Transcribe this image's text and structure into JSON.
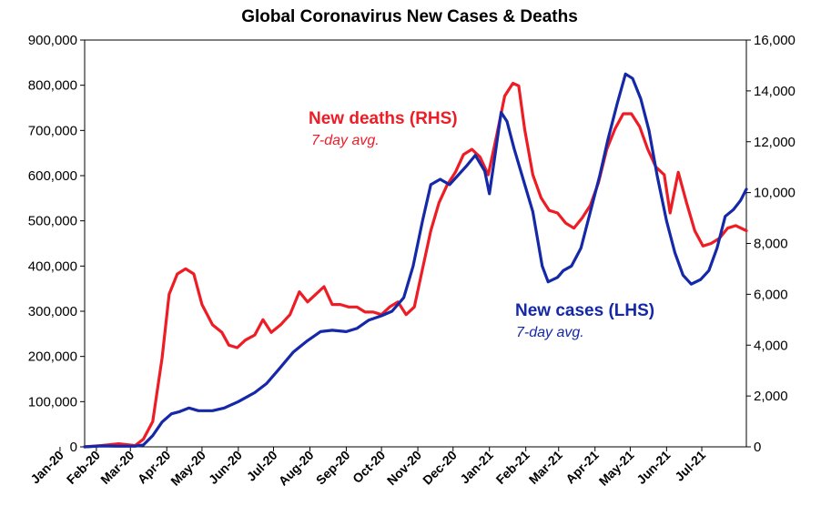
{
  "chart_data": {
    "type": "line",
    "title": "Global Coronavirus New Cases & Deaths",
    "x_start": "2020-01-22",
    "x_end": "2021-08-08",
    "xticks": [
      "Jan-20",
      "Feb-20",
      "Mar-20",
      "Apr-20",
      "May-20",
      "Jun-20",
      "Jul-20",
      "Aug-20",
      "Sep-20",
      "Oct-20",
      "Nov-20",
      "Dec-20",
      "Jan-21",
      "Feb-21",
      "Mar-21",
      "Apr-21",
      "May-21",
      "Jun-21",
      "Jul-21"
    ],
    "y_left": {
      "range": [
        0,
        900000
      ],
      "ticks": [
        "0",
        "100,000",
        "200,000",
        "300,000",
        "400,000",
        "500,000",
        "600,000",
        "700,000",
        "800,000",
        "900,000"
      ]
    },
    "y_right": {
      "range": [
        0,
        16000
      ],
      "ticks": [
        "0",
        "2,000",
        "4,000",
        "6,000",
        "8,000",
        "10,000",
        "12,000",
        "14,000",
        "16,000"
      ]
    },
    "series": [
      {
        "name": "New cases (LHS)",
        "subtitle": "7-day avg.",
        "axis": "left",
        "color": "#1428a8",
        "points": [
          [
            "2020-01-22",
            0
          ],
          [
            "2020-02-05",
            2000
          ],
          [
            "2020-02-20",
            1500
          ],
          [
            "2020-03-05",
            1500
          ],
          [
            "2020-03-12",
            4000
          ],
          [
            "2020-03-20",
            25000
          ],
          [
            "2020-03-28",
            55000
          ],
          [
            "2020-04-05",
            73000
          ],
          [
            "2020-04-12",
            78000
          ],
          [
            "2020-04-20",
            86000
          ],
          [
            "2020-04-28",
            80000
          ],
          [
            "2020-05-10",
            80000
          ],
          [
            "2020-05-20",
            86000
          ],
          [
            "2020-06-01",
            100000
          ],
          [
            "2020-06-15",
            120000
          ],
          [
            "2020-06-25",
            140000
          ],
          [
            "2020-07-05",
            170000
          ],
          [
            "2020-07-18",
            210000
          ],
          [
            "2020-07-30",
            235000
          ],
          [
            "2020-08-10",
            255000
          ],
          [
            "2020-08-20",
            258000
          ],
          [
            "2020-09-01",
            255000
          ],
          [
            "2020-09-10",
            262000
          ],
          [
            "2020-09-20",
            280000
          ],
          [
            "2020-10-01",
            290000
          ],
          [
            "2020-10-10",
            300000
          ],
          [
            "2020-10-20",
            330000
          ],
          [
            "2020-10-28",
            400000
          ],
          [
            "2020-11-05",
            500000
          ],
          [
            "2020-11-12",
            580000
          ],
          [
            "2020-11-20",
            592000
          ],
          [
            "2020-11-28",
            580000
          ],
          [
            "2020-12-05",
            600000
          ],
          [
            "2020-12-12",
            620000
          ],
          [
            "2020-12-20",
            645000
          ],
          [
            "2020-12-28",
            610000
          ],
          [
            "2021-01-01",
            560000
          ],
          [
            "2021-01-06",
            650000
          ],
          [
            "2021-01-11",
            740000
          ],
          [
            "2021-01-16",
            720000
          ],
          [
            "2021-01-22",
            660000
          ],
          [
            "2021-01-30",
            590000
          ],
          [
            "2021-02-07",
            520000
          ],
          [
            "2021-02-15",
            400000
          ],
          [
            "2021-02-20",
            365000
          ],
          [
            "2021-02-28",
            375000
          ],
          [
            "2021-03-05",
            390000
          ],
          [
            "2021-03-12",
            400000
          ],
          [
            "2021-03-20",
            440000
          ],
          [
            "2021-03-28",
            520000
          ],
          [
            "2021-04-05",
            600000
          ],
          [
            "2021-04-12",
            680000
          ],
          [
            "2021-04-20",
            760000
          ],
          [
            "2021-04-27",
            825000
          ],
          [
            "2021-05-03",
            815000
          ],
          [
            "2021-05-10",
            770000
          ],
          [
            "2021-05-17",
            700000
          ],
          [
            "2021-05-24",
            600000
          ],
          [
            "2021-06-01",
            500000
          ],
          [
            "2021-06-08",
            430000
          ],
          [
            "2021-06-15",
            380000
          ],
          [
            "2021-06-22",
            360000
          ],
          [
            "2021-06-30",
            370000
          ],
          [
            "2021-07-07",
            390000
          ],
          [
            "2021-07-14",
            440000
          ],
          [
            "2021-07-21",
            510000
          ],
          [
            "2021-07-28",
            525000
          ],
          [
            "2021-08-03",
            545000
          ],
          [
            "2021-08-08",
            570000
          ]
        ]
      },
      {
        "name": "New deaths (RHS)",
        "subtitle": "7-day avg.",
        "axis": "right",
        "color": "#ee1c25",
        "points": [
          [
            "2020-01-22",
            0
          ],
          [
            "2020-02-05",
            50
          ],
          [
            "2020-02-20",
            120
          ],
          [
            "2020-03-05",
            50
          ],
          [
            "2020-03-12",
            300
          ],
          [
            "2020-03-20",
            1000
          ],
          [
            "2020-03-28",
            3500
          ],
          [
            "2020-04-03",
            6000
          ],
          [
            "2020-04-10",
            6800
          ],
          [
            "2020-04-17",
            7000
          ],
          [
            "2020-04-24",
            6800
          ],
          [
            "2020-05-01",
            5600
          ],
          [
            "2020-05-10",
            4800
          ],
          [
            "2020-05-18",
            4500
          ],
          [
            "2020-05-24",
            4000
          ],
          [
            "2020-05-31",
            3900
          ],
          [
            "2020-06-07",
            4200
          ],
          [
            "2020-06-15",
            4400
          ],
          [
            "2020-06-22",
            5000
          ],
          [
            "2020-06-29",
            4500
          ],
          [
            "2020-07-07",
            4800
          ],
          [
            "2020-07-15",
            5200
          ],
          [
            "2020-07-23",
            6100
          ],
          [
            "2020-07-30",
            5700
          ],
          [
            "2020-08-06",
            6000
          ],
          [
            "2020-08-13",
            6300
          ],
          [
            "2020-08-20",
            5600
          ],
          [
            "2020-08-27",
            5600
          ],
          [
            "2020-09-03",
            5500
          ],
          [
            "2020-09-10",
            5500
          ],
          [
            "2020-09-17",
            5300
          ],
          [
            "2020-09-24",
            5300
          ],
          [
            "2020-10-01",
            5200
          ],
          [
            "2020-10-08",
            5500
          ],
          [
            "2020-10-15",
            5700
          ],
          [
            "2020-10-22",
            5200
          ],
          [
            "2020-10-29",
            5500
          ],
          [
            "2020-11-05",
            7000
          ],
          [
            "2020-11-12",
            8500
          ],
          [
            "2020-11-19",
            9600
          ],
          [
            "2020-11-26",
            10300
          ],
          [
            "2020-12-03",
            10800
          ],
          [
            "2020-12-10",
            11500
          ],
          [
            "2020-12-17",
            11700
          ],
          [
            "2020-12-24",
            11400
          ],
          [
            "2020-12-31",
            10700
          ],
          [
            "2021-01-07",
            12200
          ],
          [
            "2021-01-14",
            13800
          ],
          [
            "2021-01-21",
            14300
          ],
          [
            "2021-01-26",
            14200
          ],
          [
            "2021-01-31",
            12500
          ],
          [
            "2021-02-07",
            10700
          ],
          [
            "2021-02-14",
            9800
          ],
          [
            "2021-02-21",
            9300
          ],
          [
            "2021-02-28",
            9200
          ],
          [
            "2021-03-07",
            8800
          ],
          [
            "2021-03-14",
            8600
          ],
          [
            "2021-03-21",
            9000
          ],
          [
            "2021-03-28",
            9500
          ],
          [
            "2021-04-04",
            10400
          ],
          [
            "2021-04-11",
            11700
          ],
          [
            "2021-04-18",
            12500
          ],
          [
            "2021-04-25",
            13100
          ],
          [
            "2021-05-02",
            13100
          ],
          [
            "2021-05-09",
            12600
          ],
          [
            "2021-05-16",
            11700
          ],
          [
            "2021-05-23",
            11000
          ],
          [
            "2021-05-30",
            10700
          ],
          [
            "2021-06-04",
            9200
          ],
          [
            "2021-06-11",
            10800
          ],
          [
            "2021-06-18",
            9600
          ],
          [
            "2021-06-25",
            8500
          ],
          [
            "2021-07-02",
            7900
          ],
          [
            "2021-07-09",
            8000
          ],
          [
            "2021-07-16",
            8200
          ],
          [
            "2021-07-23",
            8600
          ],
          [
            "2021-07-30",
            8700
          ],
          [
            "2021-08-08",
            8500
          ]
        ]
      }
    ]
  }
}
